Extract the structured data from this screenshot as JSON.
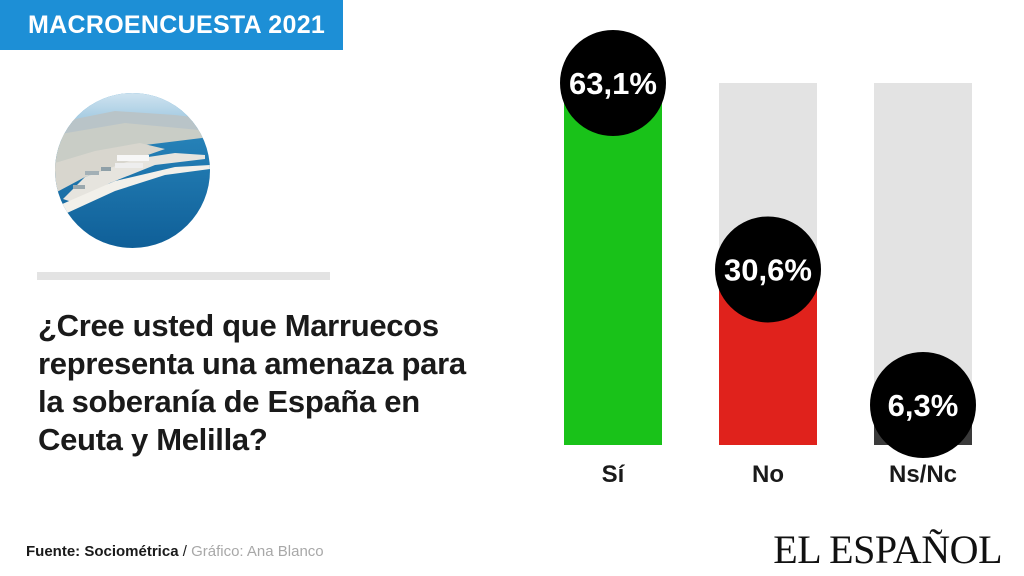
{
  "header": {
    "title": "MACROENCUESTA 2021"
  },
  "question": "¿Cree usted que Marruecos\nrepresenta una amenaza  para\nla soberanía de España en\nCeuta y Melilla?",
  "footer": {
    "source_label": "Fuente: Sociométrica",
    "separator": " / ",
    "credit": "Gráfico: Ana Blanco",
    "logo": "EL ESPAÑOL"
  },
  "colors": {
    "header": "#1d8fd6",
    "si": "#19c219",
    "no": "#e0221c",
    "nsnc": "#3a3a3a",
    "track": "#e3e3e3",
    "bubble": "#000000"
  },
  "chart_data": {
    "type": "bar",
    "categories": [
      "Sí",
      "No",
      "Ns/Nc"
    ],
    "values": [
      63.1,
      30.6,
      6.3
    ],
    "value_labels": [
      "63,1%",
      "30,6%",
      "6,3%"
    ],
    "ylim": [
      0,
      63.1
    ]
  }
}
